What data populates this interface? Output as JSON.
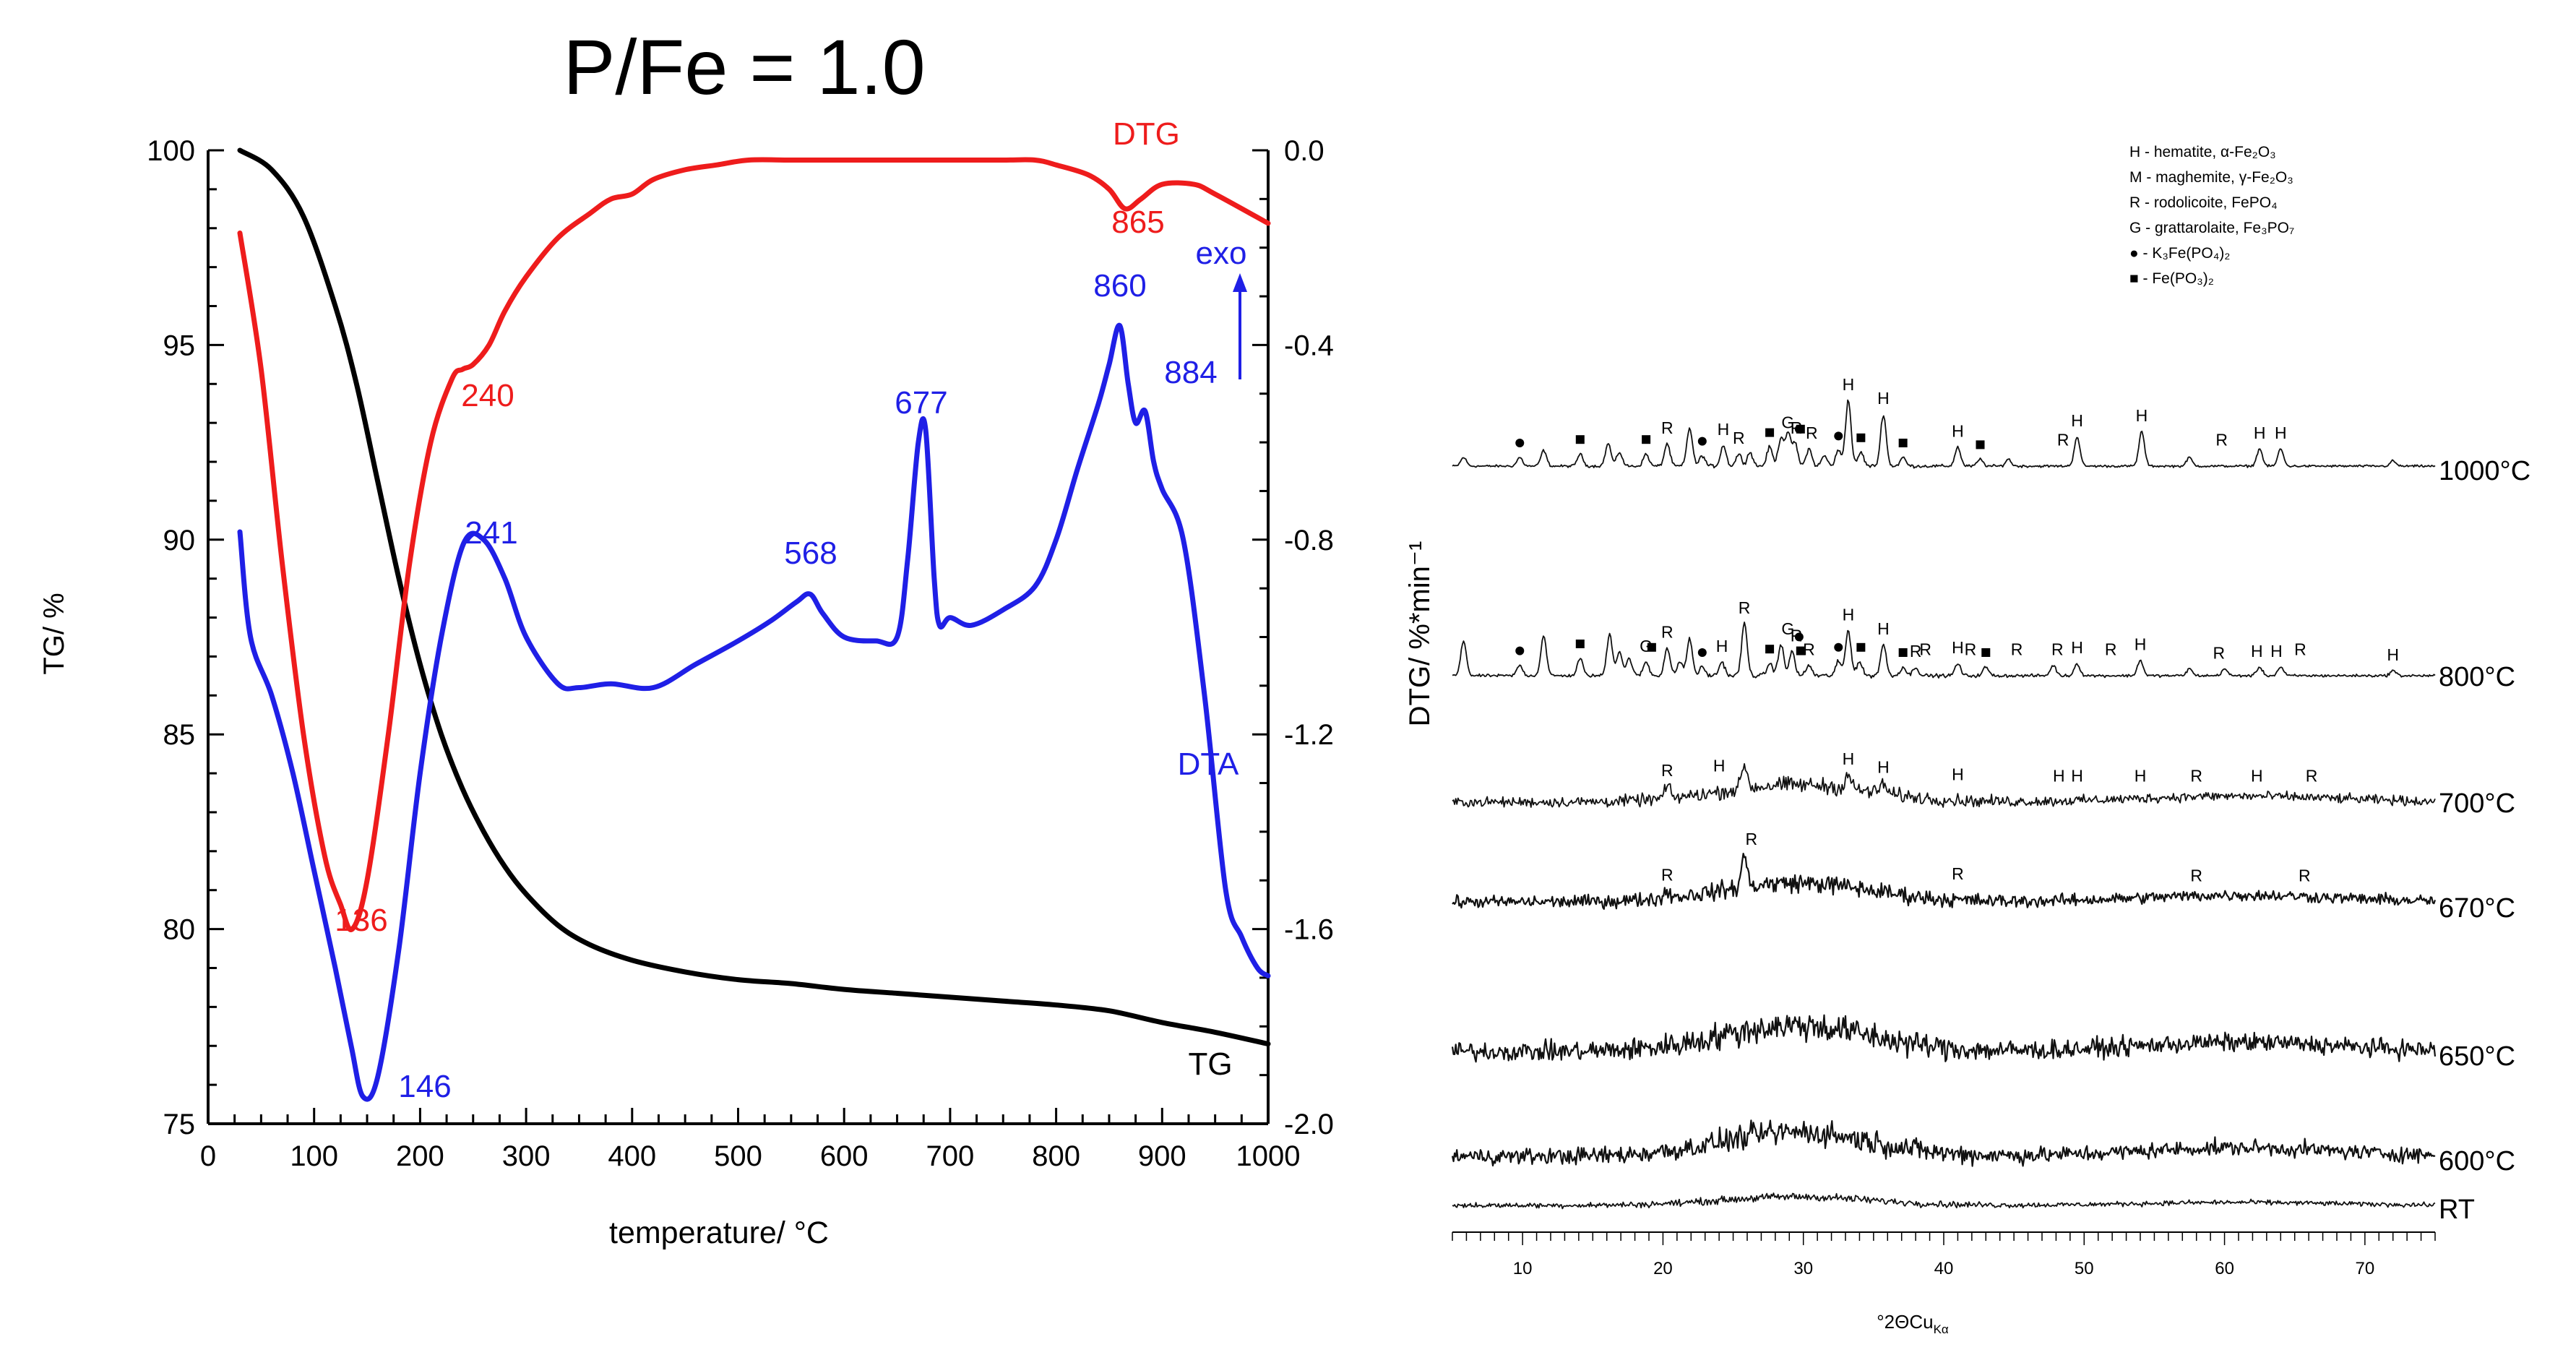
{
  "chart_data": [
    {
      "type": "line",
      "title": "P/Fe = 1.0",
      "xlabel": "temperature/ °C",
      "ylabel": "TG/ %",
      "y2label": "DTG/ %*min⁻¹",
      "xlim": [
        0,
        1000
      ],
      "ylim": [
        75,
        100
      ],
      "y2lim": [
        -2.0,
        0.0
      ],
      "x_ticks": [
        "0",
        "100",
        "200",
        "300",
        "400",
        "500",
        "600",
        "700",
        "800",
        "900",
        "1000"
      ],
      "y_ticks": [
        "75",
        "80",
        "85",
        "90",
        "95",
        "100"
      ],
      "y2_ticks": [
        "-2.0",
        "-1.6",
        "-1.2",
        "-0.8",
        "-0.4",
        "0.0"
      ],
      "colors": {
        "TG": "#000000",
        "DTG": "#ee1c1c",
        "DTA": "#1f1fe6"
      },
      "series": [
        {
          "name": "TG",
          "axis": "left",
          "x": [
            30,
            60,
            90,
            120,
            140,
            160,
            180,
            200,
            220,
            240,
            260,
            280,
            300,
            330,
            360,
            400,
            450,
            500,
            550,
            600,
            650,
            700,
            750,
            800,
            850,
            900,
            950,
            1000
          ],
          "y": [
            100,
            99.5,
            98.3,
            96.0,
            94.0,
            91.5,
            89.0,
            86.8,
            85.0,
            83.6,
            82.5,
            81.6,
            80.9,
            80.1,
            79.6,
            79.2,
            78.9,
            78.7,
            78.6,
            78.45,
            78.35,
            78.25,
            78.15,
            78.05,
            77.9,
            77.6,
            77.35,
            77.05
          ]
        },
        {
          "name": "DTG",
          "axis": "right",
          "x": [
            30,
            50,
            70,
            90,
            110,
            125,
            136,
            150,
            170,
            190,
            210,
            230,
            240,
            250,
            265,
            280,
            300,
            330,
            360,
            380,
            400,
            420,
            450,
            480,
            510,
            550,
            600,
            650,
            700,
            750,
            780,
            800,
            830,
            850,
            865,
            880,
            900,
            930,
            950,
            1000
          ],
          "y": [
            -0.17,
            -0.45,
            -0.85,
            -1.2,
            -1.45,
            -1.55,
            -1.6,
            -1.5,
            -1.2,
            -0.85,
            -0.6,
            -0.47,
            -0.45,
            -0.44,
            -0.4,
            -0.33,
            -0.26,
            -0.18,
            -0.13,
            -0.1,
            -0.09,
            -0.06,
            -0.04,
            -0.03,
            -0.02,
            -0.02,
            -0.02,
            -0.02,
            -0.02,
            -0.02,
            -0.02,
            -0.03,
            -0.05,
            -0.08,
            -0.12,
            -0.1,
            -0.07,
            -0.07,
            -0.09,
            -0.15
          ]
        },
        {
          "name": "DTA",
          "axis": "left",
          "x": [
            30,
            40,
            60,
            80,
            100,
            120,
            135,
            146,
            160,
            180,
            200,
            220,
            241,
            260,
            280,
            300,
            330,
            350,
            380,
            420,
            460,
            500,
            530,
            555,
            568,
            580,
            600,
            630,
            650,
            660,
            670,
            677,
            685,
            690,
            700,
            720,
            750,
            780,
            800,
            820,
            840,
            850,
            860,
            868,
            875,
            884,
            892,
            900,
            920,
            940,
            960,
            975,
            990,
            1000
          ],
          "y": [
            90.2,
            87.5,
            86.0,
            84.0,
            81.5,
            79.0,
            77.0,
            75.7,
            76.2,
            79.5,
            84.0,
            87.5,
            89.9,
            90.0,
            89.0,
            87.5,
            86.3,
            86.2,
            86.3,
            86.2,
            86.8,
            87.4,
            87.9,
            88.4,
            88.6,
            88.1,
            87.5,
            87.4,
            87.5,
            89.5,
            92.5,
            92.8,
            89.0,
            87.8,
            88.0,
            87.8,
            88.2,
            88.8,
            90.0,
            91.8,
            93.5,
            94.5,
            95.5,
            94.0,
            93.0,
            93.3,
            92.0,
            91.3,
            90.0,
            86.0,
            81.0,
            79.8,
            79.0,
            78.8
          ]
        }
      ],
      "annotations": [
        {
          "text": "DTG",
          "color": "#ee1c1c"
        },
        {
          "text": "865",
          "color": "#ee1c1c"
        },
        {
          "text": "240",
          "color": "#ee1c1c"
        },
        {
          "text": "136",
          "color": "#ee1c1c"
        },
        {
          "text": "860",
          "color": "#1f1fe6"
        },
        {
          "text": "884",
          "color": "#1f1fe6"
        },
        {
          "text": "677",
          "color": "#1f1fe6"
        },
        {
          "text": "568",
          "color": "#1f1fe6"
        },
        {
          "text": "241",
          "color": "#1f1fe6"
        },
        {
          "text": "146",
          "color": "#1f1fe6"
        },
        {
          "text": "DTA",
          "color": "#1f1fe6"
        },
        {
          "text": "exo",
          "color": "#1f1fe6"
        },
        {
          "text": "TG",
          "color": "#000000"
        }
      ]
    },
    {
      "type": "line",
      "title": "",
      "xlabel": "°2ΘCu",
      "xlabel_sub": "Kα",
      "xlim": [
        5,
        75
      ],
      "x_ticks": [
        "10",
        "20",
        "30",
        "40",
        "50",
        "60",
        "70"
      ],
      "legend": [
        "H - hematite, α-Fe₂O₃",
        "M - maghemite, γ-Fe₂O₃",
        "R - rodolicoite, FePO₄",
        "G - grattarolaite, Fe₃PO₇",
        "● - K₃Fe(PO₄)₂",
        "■ - Fe(PO₃)₂"
      ],
      "series": [
        {
          "name": "1000°C",
          "amorphous": 0.0,
          "noise": 0.12
        },
        {
          "name": "800°C",
          "amorphous": 0.0,
          "noise": 0.14
        },
        {
          "name": "700°C",
          "amorphous": 1.0,
          "noise": 0.5
        },
        {
          "name": "670°C",
          "amorphous": 1.1,
          "noise": 0.6
        },
        {
          "name": "650°C",
          "amorphous": 1.5,
          "noise": 0.95
        },
        {
          "name": "600°C",
          "amorphous": 1.4,
          "noise": 0.8
        },
        {
          "name": "RT",
          "amorphous": 0.5,
          "noise": 0.25
        }
      ],
      "peaks": {
        "1000°C": [
          [
            5.8,
            0.5
          ],
          [
            9.8,
            0.5
          ],
          [
            11.5,
            0.9
          ],
          [
            14.1,
            0.7
          ],
          [
            16.1,
            1.3
          ],
          [
            16.9,
            0.8
          ],
          [
            18.8,
            0.7
          ],
          [
            20.3,
            1.3
          ],
          [
            21.9,
            2.2
          ],
          [
            22.8,
            0.6
          ],
          [
            24.3,
            1.2
          ],
          [
            25.4,
            0.7
          ],
          [
            26.2,
            0.8
          ],
          [
            27.6,
            1.1
          ],
          [
            28.4,
            1.6
          ],
          [
            28.9,
            1.8
          ],
          [
            29.4,
            1.3
          ],
          [
            30.4,
            1.0
          ],
          [
            31.5,
            0.6
          ],
          [
            32.5,
            0.9
          ],
          [
            33.2,
            3.8
          ],
          [
            34.1,
            0.8
          ],
          [
            35.7,
            3.0
          ],
          [
            37.1,
            0.5
          ],
          [
            41.0,
            1.1
          ],
          [
            42.6,
            0.4
          ],
          [
            44.6,
            0.4
          ],
          [
            49.5,
            1.7
          ],
          [
            54.1,
            2.0
          ],
          [
            57.5,
            0.5
          ],
          [
            62.5,
            1.0
          ],
          [
            64.0,
            1.0
          ],
          [
            72.0,
            0.3
          ]
        ],
        "800°C": [
          [
            5.8,
            2.0
          ],
          [
            9.8,
            0.6
          ],
          [
            11.5,
            2.3
          ],
          [
            14.1,
            1.0
          ],
          [
            16.2,
            2.4
          ],
          [
            16.9,
            1.4
          ],
          [
            17.6,
            1.0
          ],
          [
            18.8,
            0.8
          ],
          [
            20.3,
            1.6
          ],
          [
            21.2,
            0.8
          ],
          [
            21.9,
            2.1
          ],
          [
            22.8,
            0.5
          ],
          [
            24.2,
            0.8
          ],
          [
            25.8,
            3.0
          ],
          [
            27.6,
            0.7
          ],
          [
            28.4,
            1.8
          ],
          [
            29.2,
            1.4
          ],
          [
            30.4,
            0.6
          ],
          [
            32.5,
            0.8
          ],
          [
            33.2,
            2.6
          ],
          [
            34.0,
            0.8
          ],
          [
            35.7,
            1.8
          ],
          [
            37.1,
            0.5
          ],
          [
            38.0,
            0.5
          ],
          [
            41.0,
            0.7
          ],
          [
            43.0,
            0.5
          ],
          [
            47.8,
            0.6
          ],
          [
            49.5,
            0.7
          ],
          [
            54.0,
            0.9
          ],
          [
            57.5,
            0.4
          ],
          [
            60.0,
            0.4
          ],
          [
            62.5,
            0.5
          ],
          [
            64.0,
            0.5
          ],
          [
            72.0,
            0.3
          ]
        ],
        "700°C": [
          [
            20.3,
            0.7
          ],
          [
            25.8,
            1.4
          ],
          [
            33.2,
            0.8
          ],
          [
            35.7,
            0.6
          ]
        ],
        "670°C": [
          [
            20.3,
            0.4
          ],
          [
            25.8,
            1.8
          ]
        ],
        "650°C": [],
        "600°C": [],
        "RT": []
      },
      "peak_labels": {
        "1000°C": [
          [
            33.2,
            "H"
          ],
          [
            35.7,
            "H"
          ],
          [
            24.3,
            "H"
          ],
          [
            20.3,
            "R"
          ],
          [
            25.4,
            "R"
          ],
          [
            28.9,
            "G"
          ],
          [
            29.5,
            "R"
          ],
          [
            30.6,
            "R"
          ],
          [
            41.0,
            "H"
          ],
          [
            49.5,
            "H"
          ],
          [
            54.1,
            "H"
          ],
          [
            48.5,
            "R"
          ],
          [
            59.8,
            "R"
          ],
          [
            62.5,
            "H"
          ],
          [
            64.0,
            "H"
          ]
        ],
        "800°C": [
          [
            25.8,
            "R"
          ],
          [
            33.2,
            "H"
          ],
          [
            20.3,
            "R"
          ],
          [
            28.9,
            "G"
          ],
          [
            29.5,
            "R"
          ],
          [
            35.7,
            "H"
          ],
          [
            24.2,
            "H"
          ],
          [
            18.8,
            "G"
          ],
          [
            30.4,
            "R"
          ],
          [
            38.0,
            "R"
          ],
          [
            38.7,
            "R"
          ],
          [
            41.0,
            "H"
          ],
          [
            41.9,
            "R"
          ],
          [
            45.2,
            "R"
          ],
          [
            48.1,
            "R"
          ],
          [
            49.5,
            "H"
          ],
          [
            51.9,
            "R"
          ],
          [
            54.0,
            "H"
          ],
          [
            59.6,
            "R"
          ],
          [
            62.3,
            "H"
          ],
          [
            63.7,
            "H"
          ],
          [
            65.4,
            "R"
          ],
          [
            72.0,
            "H"
          ]
        ],
        "700°C": [
          [
            20.3,
            "R"
          ],
          [
            24.0,
            "H"
          ],
          [
            33.2,
            "H"
          ],
          [
            35.7,
            "H"
          ],
          [
            41.0,
            "H"
          ],
          [
            48.2,
            "H"
          ],
          [
            49.5,
            "H"
          ],
          [
            54.0,
            "H"
          ],
          [
            58.0,
            "R"
          ],
          [
            62.3,
            "H"
          ],
          [
            66.2,
            "R"
          ]
        ],
        "670°C": [
          [
            26.3,
            "R"
          ],
          [
            20.3,
            "R"
          ],
          [
            41.0,
            "R"
          ],
          [
            58.0,
            "R"
          ],
          [
            65.7,
            "R"
          ]
        ]
      },
      "peak_markers": {
        "1000°C": [
          [
            9.8,
            "circle"
          ],
          [
            14.1,
            "square"
          ],
          [
            18.8,
            "square"
          ],
          [
            22.8,
            "circle"
          ],
          [
            27.6,
            "square"
          ],
          [
            29.7,
            "circle"
          ],
          [
            29.8,
            "square"
          ],
          [
            32.5,
            "circle"
          ],
          [
            34.1,
            "square"
          ],
          [
            37.1,
            "square"
          ],
          [
            42.6,
            "square"
          ]
        ],
        "800°C": [
          [
            9.8,
            "circle"
          ],
          [
            14.1,
            "square"
          ],
          [
            19.2,
            "square"
          ],
          [
            22.8,
            "circle"
          ],
          [
            27.6,
            "square"
          ],
          [
            29.7,
            "circle"
          ],
          [
            29.8,
            "square"
          ],
          [
            32.5,
            "circle"
          ],
          [
            34.1,
            "square"
          ],
          [
            37.1,
            "square"
          ],
          [
            43.0,
            "square"
          ]
        ]
      }
    }
  ]
}
